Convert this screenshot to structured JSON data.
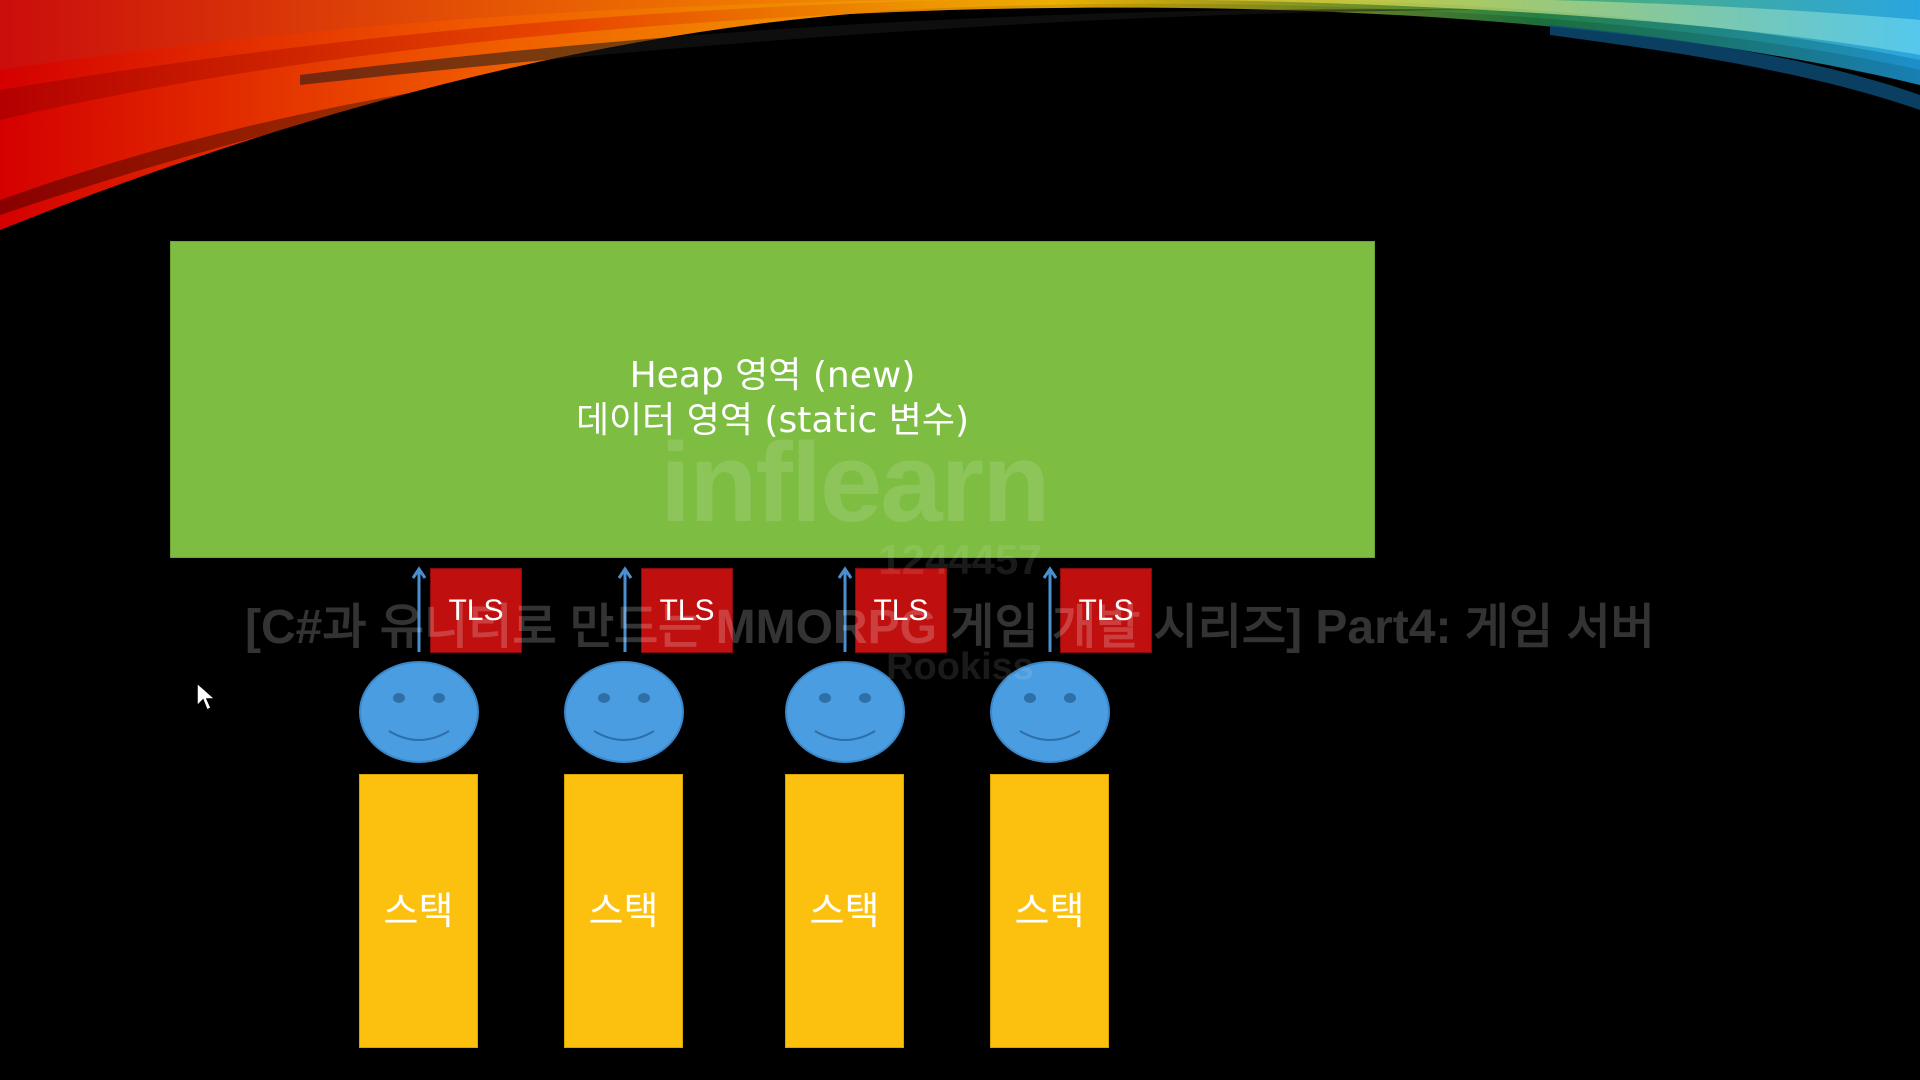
{
  "slide": {
    "heap": {
      "line1": "Heap 영역 (new)",
      "line2": "데이터 영역 (static 변수)"
    },
    "threads": [
      {
        "tls_label": "TLS",
        "stack_label": "스택"
      },
      {
        "tls_label": "TLS",
        "stack_label": "스택"
      },
      {
        "tls_label": "TLS",
        "stack_label": "스택"
      },
      {
        "tls_label": "TLS",
        "stack_label": "스택"
      }
    ]
  },
  "watermark": {
    "logo": "inflearn",
    "user_id": "1244457",
    "course_title": "[C#과 유니티로 만드는 MMORPG 게임 개발 시리즈] Part4: 게임 서버",
    "author": "Rookiss"
  },
  "colors": {
    "heap": "#7cbd42",
    "tls": "#c00f0f",
    "face": "#4a9de0",
    "stack": "#fcc10e",
    "background": "#000000"
  }
}
